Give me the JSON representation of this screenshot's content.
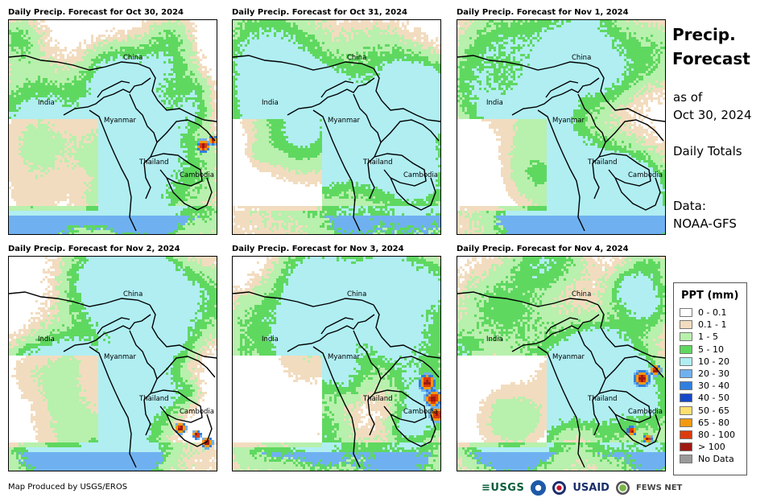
{
  "panels": [
    {
      "title": "Daily Precip. Forecast for Oct 30, 2024",
      "seed": 11,
      "heavy": "east-coast-small"
    },
    {
      "title": "Daily Precip. Forecast for Oct 31, 2024",
      "seed": 23,
      "heavy": "none"
    },
    {
      "title": "Daily Precip. Forecast for Nov 1, 2024",
      "seed": 37,
      "heavy": "none"
    },
    {
      "title": "Daily Precip. Forecast for Nov 2, 2024",
      "seed": 41,
      "heavy": "mekong-delta"
    },
    {
      "title": "Daily Precip. Forecast for Nov 3, 2024",
      "seed": 53,
      "heavy": "vietnam-coast"
    },
    {
      "title": "Daily Precip. Forecast for Nov 4, 2024",
      "seed": 67,
      "heavy": "vietnam-north"
    }
  ],
  "map_labels": {
    "china": "China",
    "india": "India",
    "myanmar": "Myanmar",
    "thailand": "Thailand",
    "cambodia": "Cambodia"
  },
  "side": {
    "title_line1": "Precip.",
    "title_line2": "Forecast",
    "asof_line1": "as of",
    "asof_line2": "Oct 30, 2024",
    "totals": "Daily Totals",
    "data_line1": "Data:",
    "data_line2": "NOAA-GFS"
  },
  "legend": {
    "title": "PPT (mm)",
    "items": [
      {
        "label": "0 - 0.1",
        "color": "#ffffff"
      },
      {
        "label": "0.1 - 1",
        "color": "#f2dcbf"
      },
      {
        "label": "1 - 5",
        "color": "#b8f0ad"
      },
      {
        "label": "5 - 10",
        "color": "#5fd860"
      },
      {
        "label": "10 - 20",
        "color": "#b0eef2"
      },
      {
        "label": "20 - 30",
        "color": "#6fb1f0"
      },
      {
        "label": "30 - 40",
        "color": "#2f7fe0"
      },
      {
        "label": "40 - 50",
        "color": "#1648c8"
      },
      {
        "label": "50 - 65",
        "color": "#ffdf70"
      },
      {
        "label": "65 - 80",
        "color": "#f39a10"
      },
      {
        "label": "80 - 100",
        "color": "#dc3a0c"
      },
      {
        "label": "> 100",
        "color": "#9e1a12"
      },
      {
        "label": "No Data",
        "color": "#9a9a9a"
      }
    ]
  },
  "credit": "Map Produced by USGS/EROS",
  "logos": {
    "usgs": "≡USGS",
    "usaid": "USAID",
    "fews": "FEWS NET"
  }
}
